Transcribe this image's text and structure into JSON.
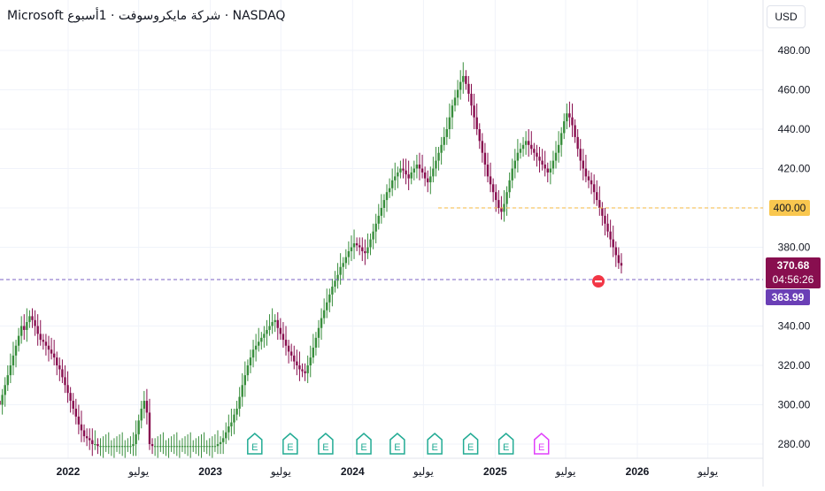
{
  "header": {
    "title": "Microsoft شركة مايكروسوفت · 1أسبوع · NASDAQ",
    "currency_label": "USD"
  },
  "colors": {
    "up": "#388e3c",
    "down": "#880e4f",
    "grid": "#f0f3fa",
    "axis_text": "#131722",
    "target_line": "#f5b942",
    "price_line": "#7b61c4",
    "last_price_bg": "#880e4f",
    "prev_close_bg": "#6a3fb6",
    "earnings_past": "#22ab94",
    "earnings_future": "#e040fb",
    "alert": "#f23645"
  },
  "chart_data": {
    "type": "candlestick",
    "ylim": [
      270,
      490
    ],
    "yticks": [
      "480.00",
      "460.00",
      "440.00",
      "420.00",
      "400.00",
      "380.00",
      "340.00",
      "320.00",
      "300.00",
      "280.00"
    ],
    "x_labels": [
      {
        "label": "2022",
        "date": "2022-01-01",
        "bold": true
      },
      {
        "label": "يوليو",
        "date": "2022-07-01",
        "bold": false
      },
      {
        "label": "2023",
        "date": "2023-01-01",
        "bold": true
      },
      {
        "label": "يوليو",
        "date": "2023-07-01",
        "bold": false
      },
      {
        "label": "2024",
        "date": "2024-01-01",
        "bold": true
      },
      {
        "label": "يوليو",
        "date": "2024-07-01",
        "bold": false
      },
      {
        "label": "2025",
        "date": "2025-01-01",
        "bold": true
      },
      {
        "label": "يوليو",
        "date": "2025-07-01",
        "bold": false
      },
      {
        "label": "2026",
        "date": "2026-01-01",
        "bold": true
      },
      {
        "label": "يوليو",
        "date": "2026-07-01",
        "bold": false
      }
    ],
    "x_start": "2021-05-07",
    "interval": "1 week",
    "closes": [
      288,
      290,
      286,
      292,
      295,
      290,
      296,
      299,
      302,
      300,
      305,
      310,
      315,
      320,
      325,
      330,
      335,
      340,
      338,
      342,
      345,
      343,
      340,
      336,
      333,
      332,
      330,
      328,
      326,
      324,
      320,
      318,
      314,
      310,
      306,
      302,
      298,
      294,
      290,
      287,
      284,
      283,
      282,
      280,
      280,
      279,
      279,
      279,
      279,
      279,
      279,
      279,
      279,
      279,
      279,
      279,
      279,
      279,
      280,
      285,
      292,
      298,
      302,
      296,
      280,
      279,
      279,
      279,
      279,
      279,
      279,
      279,
      279,
      279,
      279,
      279,
      279,
      279,
      279,
      279,
      279,
      279,
      279,
      279,
      279,
      279,
      279,
      279,
      279,
      280,
      281,
      283,
      286,
      289,
      291,
      295,
      298,
      304,
      310,
      315,
      320,
      324,
      328,
      330,
      332,
      334,
      336,
      338,
      340,
      342,
      343,
      339,
      336,
      333,
      330,
      327,
      325,
      322,
      320,
      318,
      317,
      316,
      320,
      324,
      329,
      334,
      339,
      344,
      348,
      352,
      356,
      360,
      363,
      366,
      370,
      372,
      375,
      378,
      380,
      382,
      381,
      380,
      378,
      377,
      380,
      384,
      388,
      392,
      396,
      400,
      404,
      408,
      410,
      414,
      416,
      418,
      420,
      419,
      417,
      415,
      418,
      420,
      422,
      420,
      418,
      415,
      413,
      416,
      420,
      424,
      428,
      432,
      436,
      440,
      446,
      452,
      456,
      460,
      464,
      467,
      463,
      458,
      452,
      446,
      440,
      434,
      428,
      422,
      416,
      412,
      408,
      404,
      400,
      398,
      402,
      408,
      414,
      420,
      424,
      428,
      430,
      432,
      434,
      432,
      430,
      428,
      426,
      424,
      422,
      420,
      418,
      420,
      424,
      428,
      432,
      438,
      444,
      448,
      446,
      442,
      436,
      430,
      424,
      420,
      416,
      414,
      412,
      408,
      404,
      400,
      396,
      392,
      388,
      384,
      380,
      376,
      372,
      370.68
    ],
    "last_price": "370.68",
    "countdown": "04:56:26",
    "prev_close": "363.99",
    "target_level": "400.00",
    "target_value": 400,
    "prev_close_value": 363.99,
    "earnings": [
      {
        "date": "2023-04-25",
        "label": "E",
        "future": false
      },
      {
        "date": "2023-07-25",
        "label": "E",
        "future": false
      },
      {
        "date": "2023-10-24",
        "label": "E",
        "future": false
      },
      {
        "date": "2024-01-30",
        "label": "E",
        "future": false
      },
      {
        "date": "2024-04-25",
        "label": "E",
        "future": false
      },
      {
        "date": "2024-07-30",
        "label": "E",
        "future": false
      },
      {
        "date": "2024-10-30",
        "label": "E",
        "future": false
      },
      {
        "date": "2025-01-29",
        "label": "E",
        "future": false
      },
      {
        "date": "2025-04-30",
        "label": "E",
        "future": true
      }
    ]
  }
}
